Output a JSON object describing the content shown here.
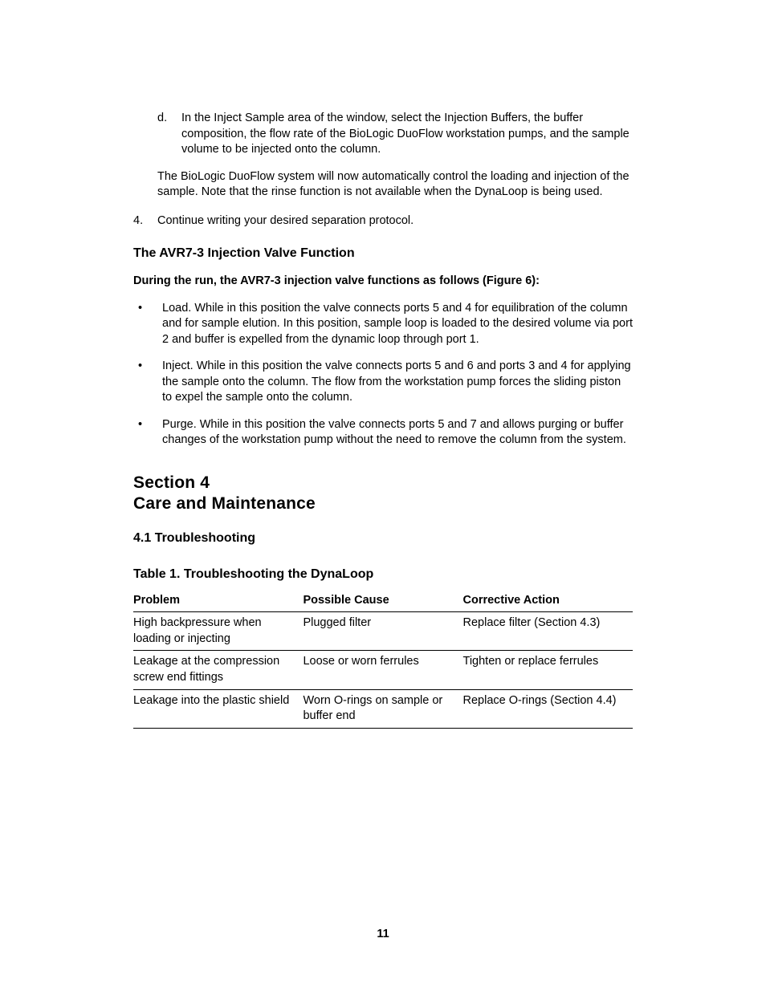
{
  "step_d": {
    "marker": "d.",
    "text": "In the Inject Sample area of the window, select the Injection Buffers, the buffer composition, the flow rate of the BioLogic DuoFlow workstation pumps, and the sample volume to be injected onto the column."
  },
  "note_para": "The BioLogic DuoFlow system will now automatically control the loading and injection of the sample. Note that the rinse function is not available when the DynaLoop is being used.",
  "step_4": {
    "marker": "4.",
    "text": "Continue writing your desired separation protocol."
  },
  "avr7": {
    "heading": "The AVR7-3 Injection Valve Function",
    "intro": "During the run, the AVR7-3 injection valve functions as follows (Figure 6):",
    "bullets": [
      "Load. While in this position the valve connects ports 5 and 4 for equilibration of the column and for sample elution. In this position, sample loop is loaded to the desired volume via port 2 and buffer is expelled from the dynamic loop through port 1.",
      "Inject. While in this position the valve connects ports 5 and 6 and ports 3 and 4 for applying the sample onto the column. The flow from the workstation pump forces the sliding piston to expel the sample onto the column.",
      "Purge. While in this position the valve connects ports 5 and 7 and allows purging or buffer changes of the workstation pump without the need to remove the column from the system."
    ]
  },
  "section4": {
    "line1": "Section 4",
    "line2": "Care and Maintenance",
    "sub": "4.1  Troubleshooting",
    "table_title": "Table 1.  Troubleshooting the DynaLoop"
  },
  "table": {
    "columns": [
      "Problem",
      "Possible Cause",
      "Corrective Action"
    ],
    "col_widths": [
      "34%",
      "32%",
      "34%"
    ],
    "rows": [
      [
        "High backpressure when loading or injecting",
        "Plugged filter",
        "Replace filter (Section 4.3)"
      ],
      [
        "Leakage at the compression screw end fittings",
        "Loose or worn ferrules",
        "Tighten or replace ferrules"
      ],
      [
        "Leakage into the plastic shield",
        "Worn O-rings on sample or buffer end",
        "Replace O-rings (Section 4.4)"
      ]
    ]
  },
  "page_number": "11"
}
